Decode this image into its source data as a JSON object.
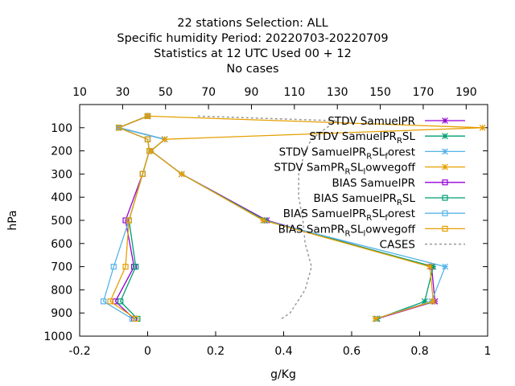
{
  "chart_data": {
    "type": "line",
    "title_lines": [
      "22 stations Selection: ALL",
      "Specific humidity  Period: 20220703-20220709",
      "Statistics at 12 UTC  Used  00 + 12",
      "No cases"
    ],
    "xlabel": "g/Kg",
    "ylabel": "hPa",
    "xlim": [
      -0.2,
      1.0
    ],
    "ylim": [
      1000,
      0
    ],
    "x_ticks": [
      "-0.2",
      "0",
      "0.2",
      "0.4",
      "0.6",
      "0.8",
      "1"
    ],
    "y_ticks": [
      "100",
      "200",
      "300",
      "400",
      "500",
      "600",
      "700",
      "800",
      "900",
      "1000"
    ],
    "x2_label": "",
    "x2lim": [
      10,
      200
    ],
    "x2_ticks": [
      "10",
      "30",
      "50",
      "70",
      "90",
      "110",
      "130",
      "150",
      "170",
      "190"
    ],
    "legend_position": "top-right",
    "levels": [
      50,
      100,
      150,
      200,
      300,
      500,
      700,
      850,
      925
    ],
    "series": [
      {
        "name": "STDV SamuelPR",
        "color": "#9400d3",
        "marker": "star",
        "values": [
          0.0,
          -0.085,
          0.05,
          0.01,
          0.1,
          0.35,
          0.835,
          0.845,
          0.675
        ]
      },
      {
        "name": "STDV SamuelPR_R SL",
        "color": "#009e73",
        "marker": "star",
        "values": [
          0.0,
          -0.085,
          0.05,
          0.01,
          0.1,
          0.345,
          0.84,
          0.815,
          0.675
        ]
      },
      {
        "name": "STDV SamuelPR_R SL_f orest",
        "color": "#56b4e9",
        "marker": "star",
        "values": [
          0.0,
          -0.085,
          0.05,
          0.01,
          0.1,
          0.34,
          0.875,
          0.835,
          0.67
        ]
      },
      {
        "name": "STDV SamPR_R SL_l owvegoff",
        "color": "#e69f00",
        "marker": "star",
        "values": [
          0.0,
          0.985,
          0.05,
          0.01,
          0.1,
          0.34,
          0.83,
          0.84,
          0.67
        ]
      },
      {
        "name": "BIAS SamuelPR",
        "color": "#9400d3",
        "marker": "square",
        "values": [
          0.0,
          -0.085,
          0.0,
          0.005,
          -0.015,
          -0.065,
          -0.04,
          -0.095,
          -0.04
        ]
      },
      {
        "name": "BIAS SamuelPR_R SL",
        "color": "#009e73",
        "marker": "square",
        "values": [
          0.0,
          -0.085,
          0.0,
          0.005,
          -0.015,
          -0.055,
          -0.035,
          -0.08,
          -0.03
        ]
      },
      {
        "name": "BIAS SamuelPR_R SL_f orest",
        "color": "#56b4e9",
        "marker": "square",
        "values": [
          0.0,
          -0.085,
          0.0,
          0.005,
          -0.015,
          -0.055,
          -0.1,
          -0.13,
          -0.045
        ]
      },
      {
        "name": "BIAS SamPR_R SL_l owvegoff",
        "color": "#e69f00",
        "marker": "square",
        "values": [
          0.0,
          -0.085,
          0.0,
          0.005,
          -0.015,
          -0.055,
          -0.065,
          -0.11,
          -0.035
        ]
      }
    ],
    "cases": {
      "name": "CASES",
      "color": "#999999",
      "points": [
        [
          65,
          50
        ],
        [
          130,
          70
        ],
        [
          125,
          100
        ],
        [
          118,
          150
        ],
        [
          115,
          200
        ],
        [
          112,
          300
        ],
        [
          112,
          400
        ],
        [
          114,
          500
        ],
        [
          115,
          600
        ],
        [
          118,
          700
        ],
        [
          115,
          800
        ],
        [
          108,
          900
        ],
        [
          104,
          925
        ]
      ]
    }
  }
}
